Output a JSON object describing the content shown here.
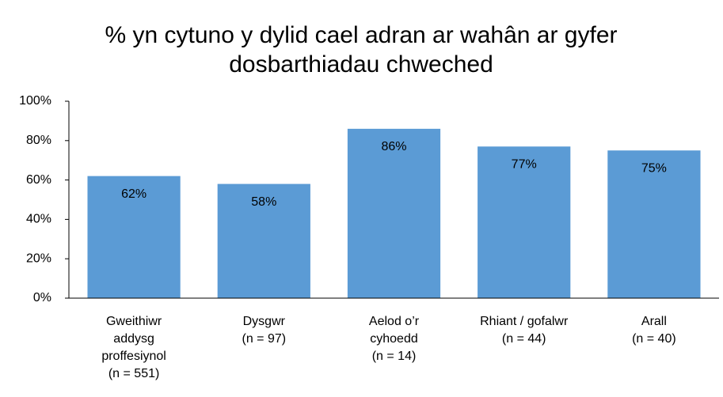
{
  "chart_data": {
    "type": "bar",
    "title": "% yn cytuno y dylid cael adran ar wahân ar gyfer\ndosbarthiadau chweched",
    "categories": [
      "Gweithiwr\naddysg\nproffesiynol\n(n = 551)",
      "Dysgwr\n(n = 97)",
      "Aelod o’r\ncyhoedd\n(n = 14)",
      "Rhiant / gofalwr\n(n = 44)",
      "Arall\n(n = 40)"
    ],
    "values": [
      62,
      58,
      86,
      77,
      75
    ],
    "value_labels": [
      "62%",
      "58%",
      "86%",
      "77%",
      "75%"
    ],
    "color": "#5b9bd5",
    "ylim": [
      0,
      100
    ],
    "yticks": [
      {
        "value": 0,
        "label": "0%"
      },
      {
        "value": 20,
        "label": "20%"
      },
      {
        "value": 40,
        "label": "40%"
      },
      {
        "value": 60,
        "label": "60%"
      },
      {
        "value": 80,
        "label": "80%"
      },
      {
        "value": 100,
        "label": "100%"
      }
    ],
    "grid": false
  }
}
